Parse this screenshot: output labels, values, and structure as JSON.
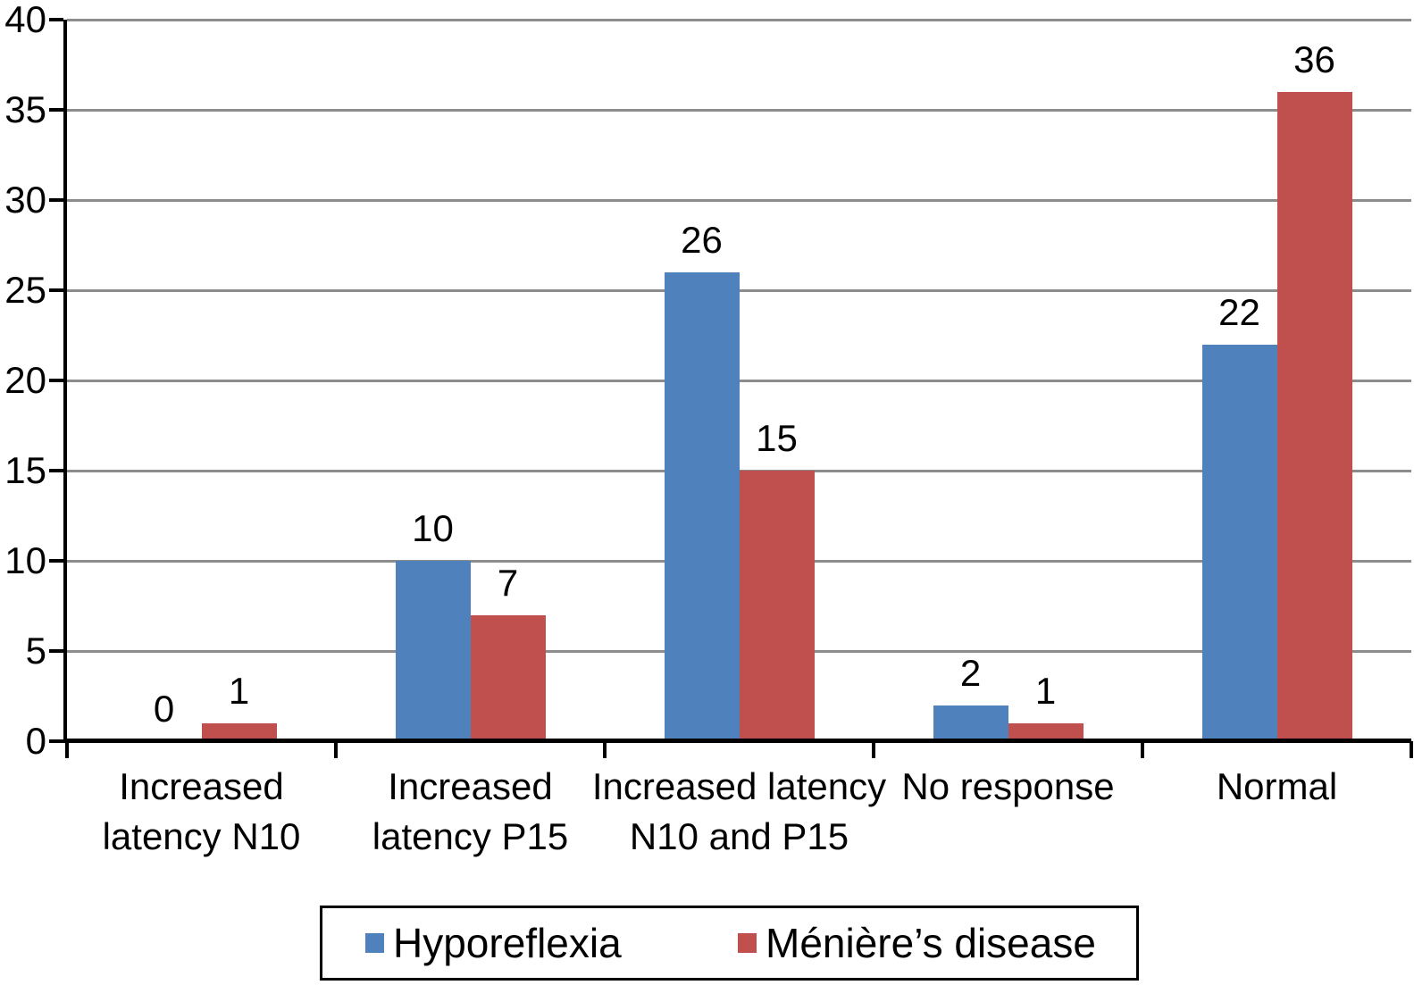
{
  "chart_data": {
    "type": "bar",
    "title": "",
    "xlabel": "",
    "ylabel": "",
    "categories": [
      "Increased latency N10",
      "Increased latency P15",
      "Increased latency N10 and P15",
      "No response",
      "Normal"
    ],
    "category_label_lines": [
      [
        "Increased",
        "latency N10"
      ],
      [
        "Increased",
        "latency P15"
      ],
      [
        "Increased latency",
        "N10 and P15"
      ],
      [
        "No response"
      ],
      [
        "Normal"
      ]
    ],
    "series": [
      {
        "name": "Hyporeflexia",
        "color": "#4F81BD",
        "values": [
          0,
          10,
          26,
          2,
          22
        ]
      },
      {
        "name": "Ménière’s disease",
        "color": "#C0504D",
        "values": [
          1,
          7,
          15,
          1,
          36
        ]
      }
    ],
    "data_labels": true,
    "ylim": [
      0,
      40
    ],
    "yticks": [
      0,
      5,
      10,
      15,
      20,
      25,
      30,
      35,
      40
    ],
    "grid": true,
    "legend_position": "bottom"
  },
  "colors": {
    "background": "#FFFFFF",
    "axis": "#000000",
    "gridline": "#8C8C8C",
    "text": "#000000",
    "legend_border": "#000000"
  }
}
